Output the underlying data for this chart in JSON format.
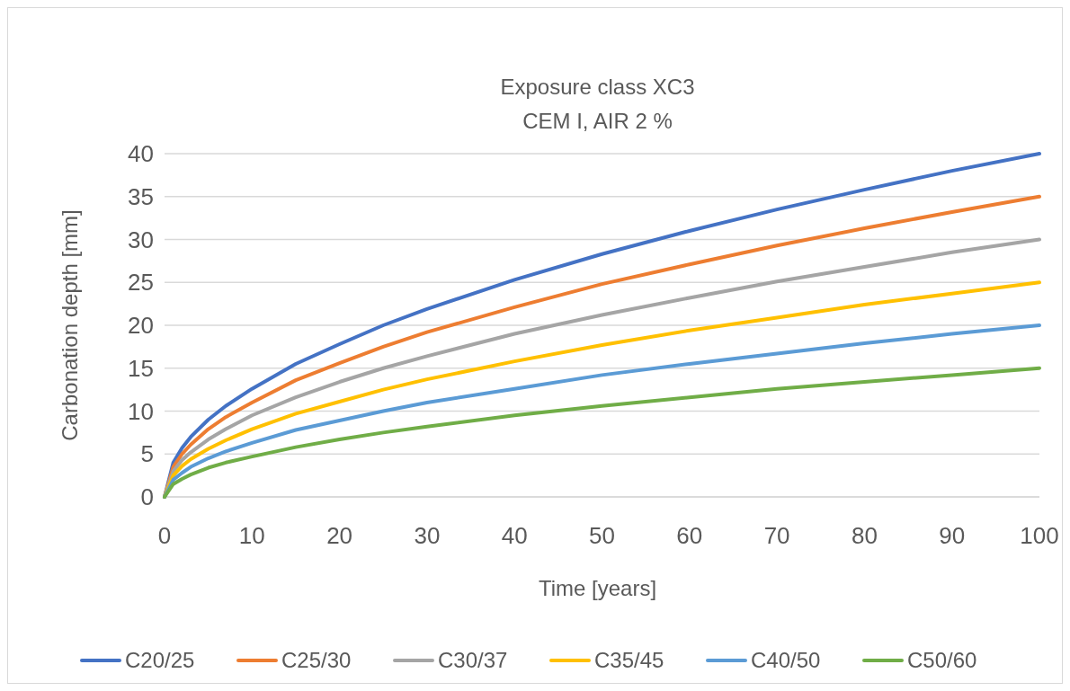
{
  "chart_data": {
    "type": "line",
    "title": "Exposure class XC3",
    "subtitle": "CEM I, AIR 2 %",
    "xlabel": "Time [years]",
    "ylabel": "Carbonation depth [mm]",
    "x": [
      0,
      1,
      2,
      3,
      5,
      7,
      10,
      15,
      20,
      25,
      30,
      40,
      50,
      60,
      70,
      80,
      90,
      100
    ],
    "series": [
      {
        "name": "C20/25",
        "color": "#4472c4",
        "values": [
          0,
          4,
          5.7,
          7,
          9,
          10.6,
          12.6,
          15.5,
          17.8,
          20,
          21.9,
          25.3,
          28.3,
          31,
          33.5,
          35.8,
          38,
          40
        ]
      },
      {
        "name": "C25/30",
        "color": "#ed7d31",
        "values": [
          0,
          3.5,
          5,
          6.1,
          7.9,
          9.3,
          11,
          13.6,
          15.6,
          17.5,
          19.2,
          22.1,
          24.8,
          27.1,
          29.3,
          31.3,
          33.2,
          35
        ]
      },
      {
        "name": "C30/37",
        "color": "#a5a5a5",
        "values": [
          0,
          3,
          4.3,
          5.2,
          6.7,
          7.9,
          9.5,
          11.6,
          13.4,
          15,
          16.4,
          19,
          21.2,
          23.2,
          25.1,
          26.8,
          28.5,
          30
        ]
      },
      {
        "name": "C35/45",
        "color": "#ffc000",
        "values": [
          0,
          2.5,
          3.6,
          4.4,
          5.6,
          6.6,
          7.9,
          9.7,
          11.1,
          12.5,
          13.7,
          15.8,
          17.7,
          19.4,
          20.9,
          22.4,
          23.7,
          25
        ]
      },
      {
        "name": "C40/50",
        "color": "#5b9bd5",
        "values": [
          0,
          2,
          2.8,
          3.5,
          4.5,
          5.3,
          6.3,
          7.8,
          8.9,
          10,
          11,
          12.6,
          14.2,
          15.5,
          16.7,
          17.9,
          19,
          20
        ]
      },
      {
        "name": "C50/60",
        "color": "#70ad47",
        "values": [
          0,
          1.5,
          2.1,
          2.6,
          3.4,
          4,
          4.7,
          5.8,
          6.7,
          7.5,
          8.2,
          9.5,
          10.6,
          11.6,
          12.6,
          13.4,
          14.2,
          15
        ]
      }
    ],
    "xlim": [
      0,
      100
    ],
    "xticks": [
      0,
      10,
      20,
      30,
      40,
      50,
      60,
      70,
      80,
      90,
      100
    ],
    "ylim": [
      0,
      40
    ],
    "yticks": [
      0,
      5,
      10,
      15,
      20,
      25,
      30,
      35,
      40
    ],
    "grid": "y",
    "legend": "bottom",
    "marker": "none",
    "line_style": "solid"
  }
}
